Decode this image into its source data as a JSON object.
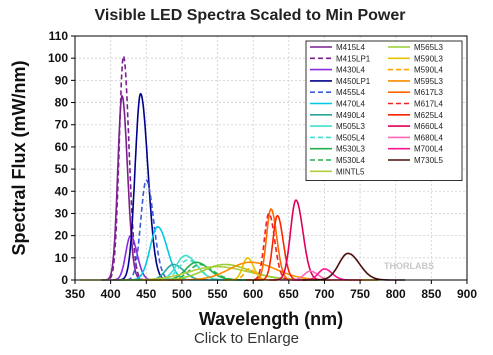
{
  "caption": "Click to Enlarge",
  "watermark": "THORLABS",
  "chart_data": {
    "type": "line",
    "title": "Visible LED Spectra Scaled to Min Power",
    "xlabel": "Wavelength (nm)",
    "ylabel": "Spectral Flux (mW/nm)",
    "xlim": [
      350,
      900
    ],
    "ylim": [
      0,
      110
    ],
    "xticks": [
      350,
      400,
      450,
      500,
      550,
      600,
      650,
      700,
      750,
      800,
      850,
      900
    ],
    "yticks": [
      0,
      10,
      20,
      30,
      40,
      50,
      60,
      70,
      80,
      90,
      100,
      110
    ],
    "grid": true,
    "legend_position": "top-right",
    "series": [
      {
        "name": "M415L4",
        "color": "#7b1f8f",
        "dash": "solid",
        "peak_nm": 416,
        "peak": 83,
        "fwhm": 14,
        "tail": 4
      },
      {
        "name": "M415LP1",
        "color": "#7b1f8f",
        "dash": "dashed",
        "peak_nm": 418,
        "peak": 101,
        "fwhm": 14,
        "tail": 4
      },
      {
        "name": "M430L4",
        "color": "#8a2be2",
        "dash": "solid",
        "peak_nm": 428,
        "peak": 20,
        "fwhm": 16,
        "tail": 5
      },
      {
        "name": "M450LP1",
        "color": "#00008b",
        "dash": "solid",
        "peak_nm": 442,
        "peak": 84,
        "fwhm": 18,
        "tail": 6
      },
      {
        "name": "M455L4",
        "color": "#3b5bdb",
        "dash": "dashed",
        "peak_nm": 450,
        "peak": 45,
        "fwhm": 18,
        "tail": 6
      },
      {
        "name": "M470L4",
        "color": "#00c8e6",
        "dash": "solid",
        "peak_nm": 466,
        "peak": 24,
        "fwhm": 25,
        "tail": 6
      },
      {
        "name": "M490L4",
        "color": "#26a69a",
        "dash": "solid",
        "peak_nm": 488,
        "peak": 7,
        "fwhm": 26,
        "tail": 8
      },
      {
        "name": "M505L3",
        "color": "#40e0d0",
        "dash": "solid",
        "peak_nm": 505,
        "peak": 11,
        "fwhm": 30,
        "tail": 8
      },
      {
        "name": "M505L4",
        "color": "#40e0d0",
        "dash": "dashed",
        "peak_nm": 508,
        "peak": 9,
        "fwhm": 30,
        "tail": 8
      },
      {
        "name": "M530L3",
        "color": "#22b14c",
        "dash": "solid",
        "peak_nm": 520,
        "peak": 8,
        "fwhm": 34,
        "tail": 9
      },
      {
        "name": "M530L4",
        "color": "#22b14c",
        "dash": "dashed",
        "peak_nm": 525,
        "peak": 7,
        "fwhm": 34,
        "tail": 9
      },
      {
        "name": "MINTL5",
        "color": "#b0d040",
        "dash": "solid",
        "peak_nm": 548,
        "peak": 6,
        "fwhm": 90,
        "tail": 18
      },
      {
        "name": "M565L3",
        "color": "#9acd32",
        "dash": "solid",
        "peak_nm": 560,
        "peak": 7,
        "fwhm": 70,
        "tail": 14
      },
      {
        "name": "M590L3",
        "color": "#e6c300",
        "dash": "solid",
        "peak_nm": 592,
        "peak": 10,
        "fwhm": 16,
        "tail": 4
      },
      {
        "name": "M590L4",
        "color": "#ffa500",
        "dash": "dashed",
        "peak_nm": 594,
        "peak": 5,
        "fwhm": 16,
        "tail": 4
      },
      {
        "name": "M595L3",
        "color": "#ff8c00",
        "dash": "solid",
        "peak_nm": 596,
        "peak": 8,
        "fwhm": 70,
        "tail": 14
      },
      {
        "name": "M617L3",
        "color": "#ff6600",
        "dash": "solid",
        "peak_nm": 625,
        "peak": 32,
        "fwhm": 15,
        "tail": 4
      },
      {
        "name": "M617L4",
        "color": "#ee2222",
        "dash": "dashed",
        "peak_nm": 622,
        "peak": 30,
        "fwhm": 15,
        "tail": 4
      },
      {
        "name": "M625L4",
        "color": "#ff2400",
        "dash": "solid",
        "peak_nm": 634,
        "peak": 29,
        "fwhm": 15,
        "tail": 4
      },
      {
        "name": "M660L4",
        "color": "#e0005a",
        "dash": "solid",
        "peak_nm": 660,
        "peak": 36,
        "fwhm": 18,
        "tail": 5
      },
      {
        "name": "M680L4",
        "color": "#ff69b4",
        "dash": "solid",
        "peak_nm": 680,
        "peak": 4,
        "fwhm": 20,
        "tail": 5
      },
      {
        "name": "M700L4",
        "color": "#ff1493",
        "dash": "solid",
        "peak_nm": 700,
        "peak": 5,
        "fwhm": 20,
        "tail": 5
      },
      {
        "name": "M730L5",
        "color": "#4a0e0e",
        "dash": "solid",
        "peak_nm": 733,
        "peak": 12,
        "fwhm": 30,
        "tail": 8
      }
    ]
  }
}
